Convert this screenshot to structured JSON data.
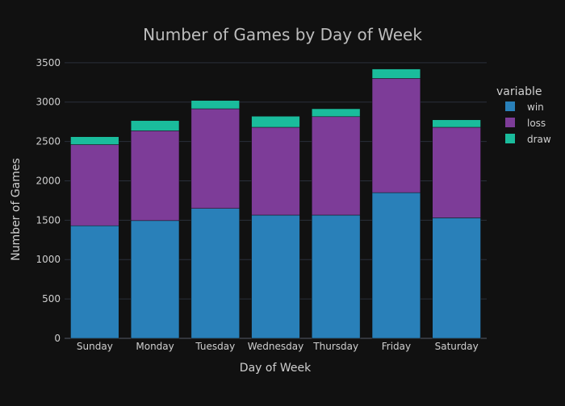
{
  "chart_data": {
    "type": "bar",
    "stacked": true,
    "title": "Number of Games by Day of Week",
    "xlabel": "Day of Week",
    "ylabel": "Number of Games",
    "ylim": [
      0,
      3580
    ],
    "yticks": [
      0,
      500,
      1000,
      1500,
      2000,
      2500,
      3000,
      3500
    ],
    "grid": true,
    "legend": {
      "title": "variable",
      "placement": "right"
    },
    "categories": [
      "Sunday",
      "Monday",
      "Tuesday",
      "Wednesday",
      "Thursday",
      "Friday",
      "Saturday"
    ],
    "series": [
      {
        "name": "win",
        "color": "#2980b9",
        "values": [
          1430,
          1495,
          1650,
          1565,
          1565,
          1850,
          1530
        ]
      },
      {
        "name": "loss",
        "color": "#7d3c98",
        "values": [
          1030,
          1140,
          1265,
          1115,
          1250,
          1450,
          1150
        ]
      },
      {
        "name": "draw",
        "color": "#1abc9c",
        "values": [
          100,
          130,
          105,
          140,
          100,
          120,
          95
        ]
      }
    ]
  },
  "colors": {
    "background": "#111111",
    "grid": "#2a2f3a",
    "text": "#cfcfcf",
    "title": "#bdbdbd"
  }
}
